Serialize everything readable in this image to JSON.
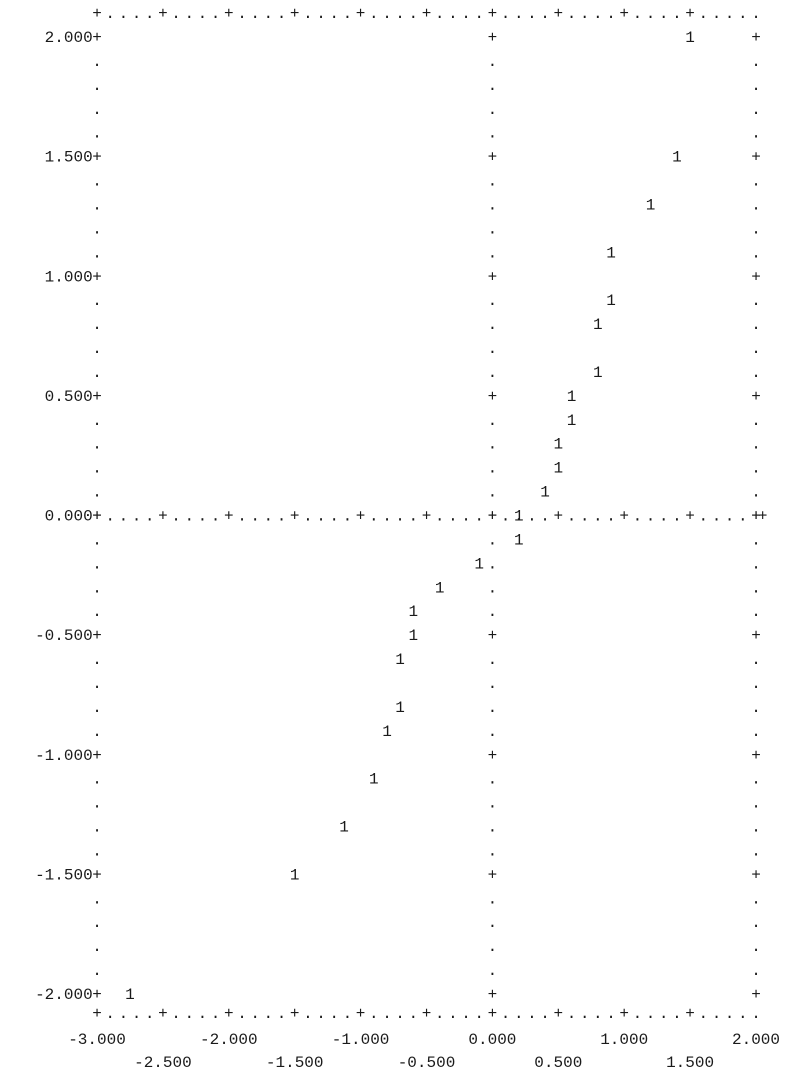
{
  "chart_data": {
    "type": "scatter",
    "title": "",
    "xlabel": "",
    "ylabel": "",
    "xlim": [
      -3.0,
      2.0
    ],
    "ylim": [
      -2.0,
      2.0
    ],
    "grid": false,
    "point_marker": "1",
    "frame_plus": "+",
    "frame_dot": ".",
    "x_ticks_row1": [
      {
        "value": -3.0,
        "label": "-3.000"
      },
      {
        "value": -2.0,
        "label": "-2.000"
      },
      {
        "value": -1.0,
        "label": "-1.000"
      },
      {
        "value": 0.0,
        "label": "0.000"
      },
      {
        "value": 1.0,
        "label": "1.000"
      },
      {
        "value": 2.0,
        "label": "2.000"
      }
    ],
    "x_ticks_row2": [
      {
        "value": -2.5,
        "label": "-2.500"
      },
      {
        "value": -1.5,
        "label": "-1.500"
      },
      {
        "value": -0.5,
        "label": "-0.500"
      },
      {
        "value": 0.5,
        "label": "0.500"
      },
      {
        "value": 1.5,
        "label": "1.500"
      }
    ],
    "y_ticks": [
      {
        "value": 2.0,
        "label": "2.000"
      },
      {
        "value": 1.5,
        "label": "1.500"
      },
      {
        "value": 1.0,
        "label": "1.000"
      },
      {
        "value": 0.5,
        "label": "0.500"
      },
      {
        "value": 0.0,
        "label": "0.000"
      },
      {
        "value": -0.5,
        "label": "-0.500"
      },
      {
        "value": -1.0,
        "label": "-1.000"
      },
      {
        "value": -1.5,
        "label": "-1.500"
      },
      {
        "value": -2.0,
        "label": "-2.000"
      }
    ],
    "points": [
      {
        "x": -2.75,
        "y": -2.0
      },
      {
        "x": -1.5,
        "y": -1.5
      },
      {
        "x": -1.125,
        "y": -1.3
      },
      {
        "x": -0.9,
        "y": -1.1
      },
      {
        "x": -0.8,
        "y": -0.9
      },
      {
        "x": -0.7,
        "y": -0.8
      },
      {
        "x": -0.7,
        "y": -0.6
      },
      {
        "x": -0.6,
        "y": -0.5
      },
      {
        "x": -0.6,
        "y": -0.4
      },
      {
        "x": -0.4,
        "y": -0.3
      },
      {
        "x": -0.1,
        "y": -0.2
      },
      {
        "x": 0.2,
        "y": -0.1
      },
      {
        "x": 0.2,
        "y": 0.0
      },
      {
        "x": 0.4,
        "y": 0.1
      },
      {
        "x": 0.5,
        "y": 0.2
      },
      {
        "x": 0.5,
        "y": 0.3
      },
      {
        "x": 0.6,
        "y": 0.4
      },
      {
        "x": 0.6,
        "y": 0.5
      },
      {
        "x": 0.8,
        "y": 0.6
      },
      {
        "x": 0.8,
        "y": 0.8
      },
      {
        "x": 0.9,
        "y": 0.9
      },
      {
        "x": 0.9,
        "y": 1.1
      },
      {
        "x": 1.2,
        "y": 1.3
      },
      {
        "x": 1.4,
        "y": 1.5
      },
      {
        "x": 1.5,
        "y": 2.0
      }
    ]
  }
}
